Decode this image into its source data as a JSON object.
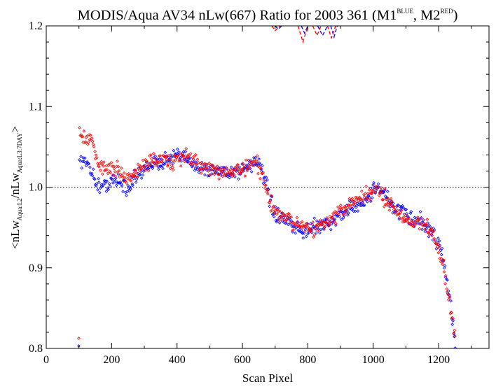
{
  "chart_data": {
    "type": "scatter",
    "title_parts": {
      "main": "MODIS/Aqua AV34 nLw(667) Ratio for 2003 361 (M1",
      "sup1": "BLUE",
      "mid": ", M2",
      "sup2": "RED",
      "end": ")"
    },
    "xlabel": "Scan Pixel",
    "ylabel_parts": {
      "a": "<nLw",
      "sub1": "Aqua:L2",
      "b": "/nLw",
      "sub2": "Aqua:L3:7DAY",
      "c": ">"
    },
    "xlim": [
      0,
      1354
    ],
    "ylim": [
      0.8,
      1.2
    ],
    "x_ticks": [
      0,
      200,
      400,
      600,
      800,
      1000,
      1200
    ],
    "y_ticks": [
      0.8,
      0.9,
      1.0,
      1.1,
      1.2
    ],
    "x_tick_labels": [
      "0",
      "200",
      "400",
      "600",
      "800",
      "1000",
      "1200"
    ],
    "y_tick_labels": [
      "0.8",
      "0.9",
      "1.0",
      "1.1",
      "1.2"
    ],
    "reference_line": 1.0,
    "series": [
      {
        "color": "#0000ff",
        "marker": "diamond",
        "trend": [
          [
            100,
            1.035
          ],
          [
            130,
            1.03
          ],
          [
            150,
            1.005
          ],
          [
            170,
            1.0
          ],
          [
            200,
            1.01
          ],
          [
            230,
            1.005
          ],
          [
            250,
            1.0
          ],
          [
            280,
            1.015
          ],
          [
            320,
            1.03
          ],
          [
            360,
            1.03
          ],
          [
            400,
            1.04
          ],
          [
            440,
            1.03
          ],
          [
            480,
            1.025
          ],
          [
            520,
            1.02
          ],
          [
            560,
            1.02
          ],
          [
            600,
            1.02
          ],
          [
            640,
            1.035
          ],
          [
            660,
            1.02
          ],
          [
            680,
            0.99
          ],
          [
            700,
            0.965
          ],
          [
            740,
            0.955
          ],
          [
            780,
            0.945
          ],
          [
            820,
            0.95
          ],
          [
            860,
            0.955
          ],
          [
            900,
            0.965
          ],
          [
            940,
            0.975
          ],
          [
            980,
            0.985
          ],
          [
            1010,
            1.0
          ],
          [
            1030,
            0.995
          ],
          [
            1060,
            0.975
          ],
          [
            1100,
            0.965
          ],
          [
            1150,
            0.955
          ],
          [
            1180,
            0.945
          ],
          [
            1200,
            0.93
          ],
          [
            1215,
            0.91
          ],
          [
            1230,
            0.87
          ],
          [
            1245,
            0.825
          ],
          [
            1252,
            0.8
          ]
        ],
        "dashed_segments": [
          [
            [
              700,
              1.2
            ],
            [
              710,
              1.196
            ],
            [
              720,
              1.2
            ]
          ],
          [
            [
              780,
              1.2
            ],
            [
              790,
              1.191
            ],
            [
              800,
              1.2
            ]
          ],
          [
            [
              830,
              1.2
            ],
            [
              845,
              1.188
            ],
            [
              860,
              1.2
            ]
          ],
          [
            [
              870,
              1.2
            ],
            [
              880,
              1.186
            ],
            [
              890,
              1.2
            ]
          ]
        ]
      },
      {
        "color": "#ff0000",
        "marker": "diamond",
        "trend": [
          [
            100,
            1.07
          ],
          [
            120,
            1.06
          ],
          [
            140,
            1.055
          ],
          [
            160,
            1.025
          ],
          [
            190,
            1.025
          ],
          [
            220,
            1.02
          ],
          [
            245,
            1.01
          ],
          [
            270,
            1.015
          ],
          [
            300,
            1.03
          ],
          [
            340,
            1.035
          ],
          [
            380,
            1.03
          ],
          [
            420,
            1.04
          ],
          [
            460,
            1.03
          ],
          [
            500,
            1.02
          ],
          [
            550,
            1.02
          ],
          [
            600,
            1.02
          ],
          [
            640,
            1.03
          ],
          [
            660,
            1.015
          ],
          [
            680,
            0.985
          ],
          [
            700,
            0.97
          ],
          [
            740,
            0.96
          ],
          [
            780,
            0.95
          ],
          [
            820,
            0.95
          ],
          [
            860,
            0.955
          ],
          [
            900,
            0.97
          ],
          [
            940,
            0.98
          ],
          [
            980,
            0.99
          ],
          [
            1010,
            0.995
          ],
          [
            1030,
            0.99
          ],
          [
            1060,
            0.975
          ],
          [
            1100,
            0.96
          ],
          [
            1150,
            0.955
          ],
          [
            1180,
            0.945
          ],
          [
            1200,
            0.925
          ],
          [
            1215,
            0.9
          ],
          [
            1230,
            0.86
          ],
          [
            1245,
            0.83
          ],
          [
            1252,
            0.815
          ]
        ],
        "dashed_segments": [
          [
            [
              690,
              1.2
            ],
            [
              700,
              1.194
            ],
            [
              715,
              1.2
            ]
          ],
          [
            [
              770,
              1.2
            ],
            [
              785,
              1.18
            ],
            [
              800,
              1.2
            ]
          ],
          [
            [
              815,
              1.2
            ],
            [
              828,
              1.188
            ],
            [
              840,
              1.2
            ]
          ],
          [
            [
              860,
              1.2
            ],
            [
              872,
              1.185
            ],
            [
              885,
              1.2
            ]
          ]
        ]
      }
    ]
  }
}
